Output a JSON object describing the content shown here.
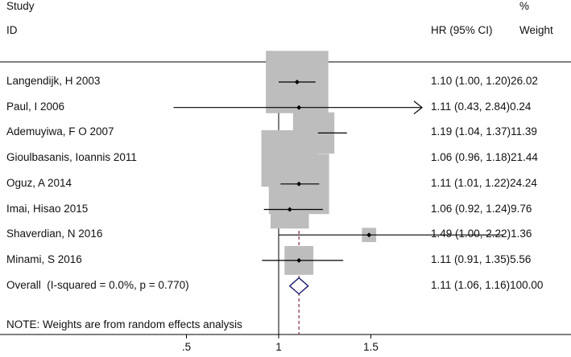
{
  "header": {
    "study_label": "Study",
    "id_label": "ID",
    "hr_label": "HR (95% CI)",
    "pct_label": "%",
    "weight_label": "Weight"
  },
  "note": "NOTE: Weights are from random effects analysis",
  "colors": {
    "box": "#bdbdbd",
    "line": "#000000",
    "overall_diamond": "#1a1a6e",
    "overall_line": "#8b2a4a"
  },
  "chart_data": {
    "type": "forest",
    "x_ticks": [
      ".5",
      "1",
      "1.5"
    ],
    "x_tick_values": [
      0.5,
      1.0,
      1.5
    ],
    "null_line": 1.0,
    "xlim": [
      0.0,
      2.5
    ],
    "overall_line_value": 1.11,
    "studies": [
      {
        "label": "Langendijk, H 2003",
        "hr": 1.1,
        "lo": 1.0,
        "hi": 1.2,
        "weight": 26.02,
        "text": "1.10 (1.00, 1.20)26.02",
        "arrow": false
      },
      {
        "label": "Paul, I 2006",
        "hr": 1.11,
        "lo": 0.43,
        "hi": 2.84,
        "weight": 0.24,
        "text": "1.11 (0.43, 2.84)0.24",
        "arrow": true
      },
      {
        "label": "Ademuyiwa, F O 2007",
        "hr": 1.19,
        "lo": 1.04,
        "hi": 1.37,
        "weight": 11.39,
        "text": "1.19 (1.04, 1.37)11.39",
        "arrow": false
      },
      {
        "label": "Gioulbasanis, Ioannis 2011",
        "hr": 1.06,
        "lo": 0.96,
        "hi": 1.18,
        "weight": 21.44,
        "text": "1.06 (0.96, 1.18)21.44",
        "arrow": false
      },
      {
        "label": "Oguz, A 2014",
        "hr": 1.11,
        "lo": 1.01,
        "hi": 1.22,
        "weight": 24.24,
        "text": "1.11 (1.01, 1.22)24.24",
        "arrow": false
      },
      {
        "label": "Imai, Hisao 2015",
        "hr": 1.06,
        "lo": 0.92,
        "hi": 1.24,
        "weight": 9.76,
        "text": "1.06 (0.92, 1.24)9.76",
        "arrow": false
      },
      {
        "label": "Shaverdian, N 2016",
        "hr": 1.49,
        "lo": 1.0,
        "hi": 2.22,
        "weight": 1.36,
        "text": "1.49 (1.00, 2.22)1.36",
        "arrow": false
      },
      {
        "label": "Minami, S 2016",
        "hr": 1.11,
        "lo": 0.91,
        "hi": 1.35,
        "weight": 5.56,
        "text": "1.11 (0.91, 1.35)5.56",
        "arrow": false
      }
    ],
    "overall": {
      "label": "Overall  (I-squared = 0.0%, p = 0.770)",
      "hr": 1.11,
      "lo": 1.06,
      "hi": 1.16,
      "weight": 100.0,
      "text": "1.11 (1.06, 1.16)100.00"
    }
  }
}
